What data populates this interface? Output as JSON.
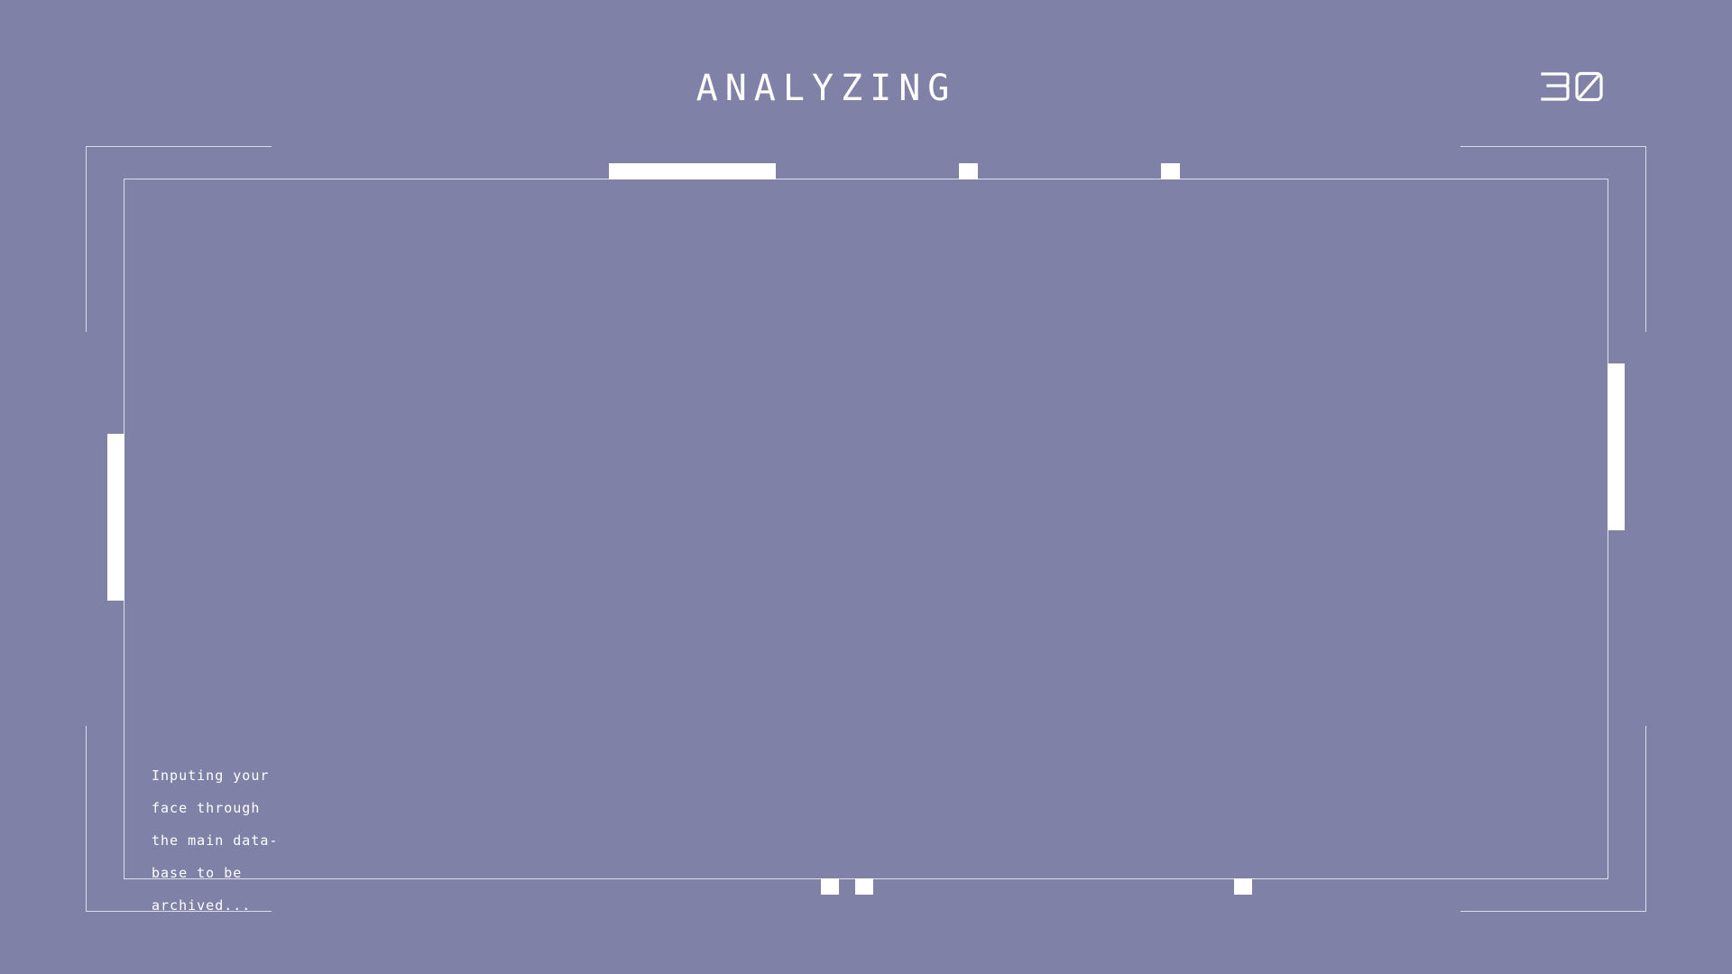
{
  "header": {
    "title": "ANALYZING",
    "counter": "30"
  },
  "status": {
    "lines": [
      "Inputing your",
      "face through",
      "the main data-",
      "base to be",
      "archived..."
    ]
  },
  "colors": {
    "background": "#7f82a6",
    "foreground": "#ffffff"
  }
}
